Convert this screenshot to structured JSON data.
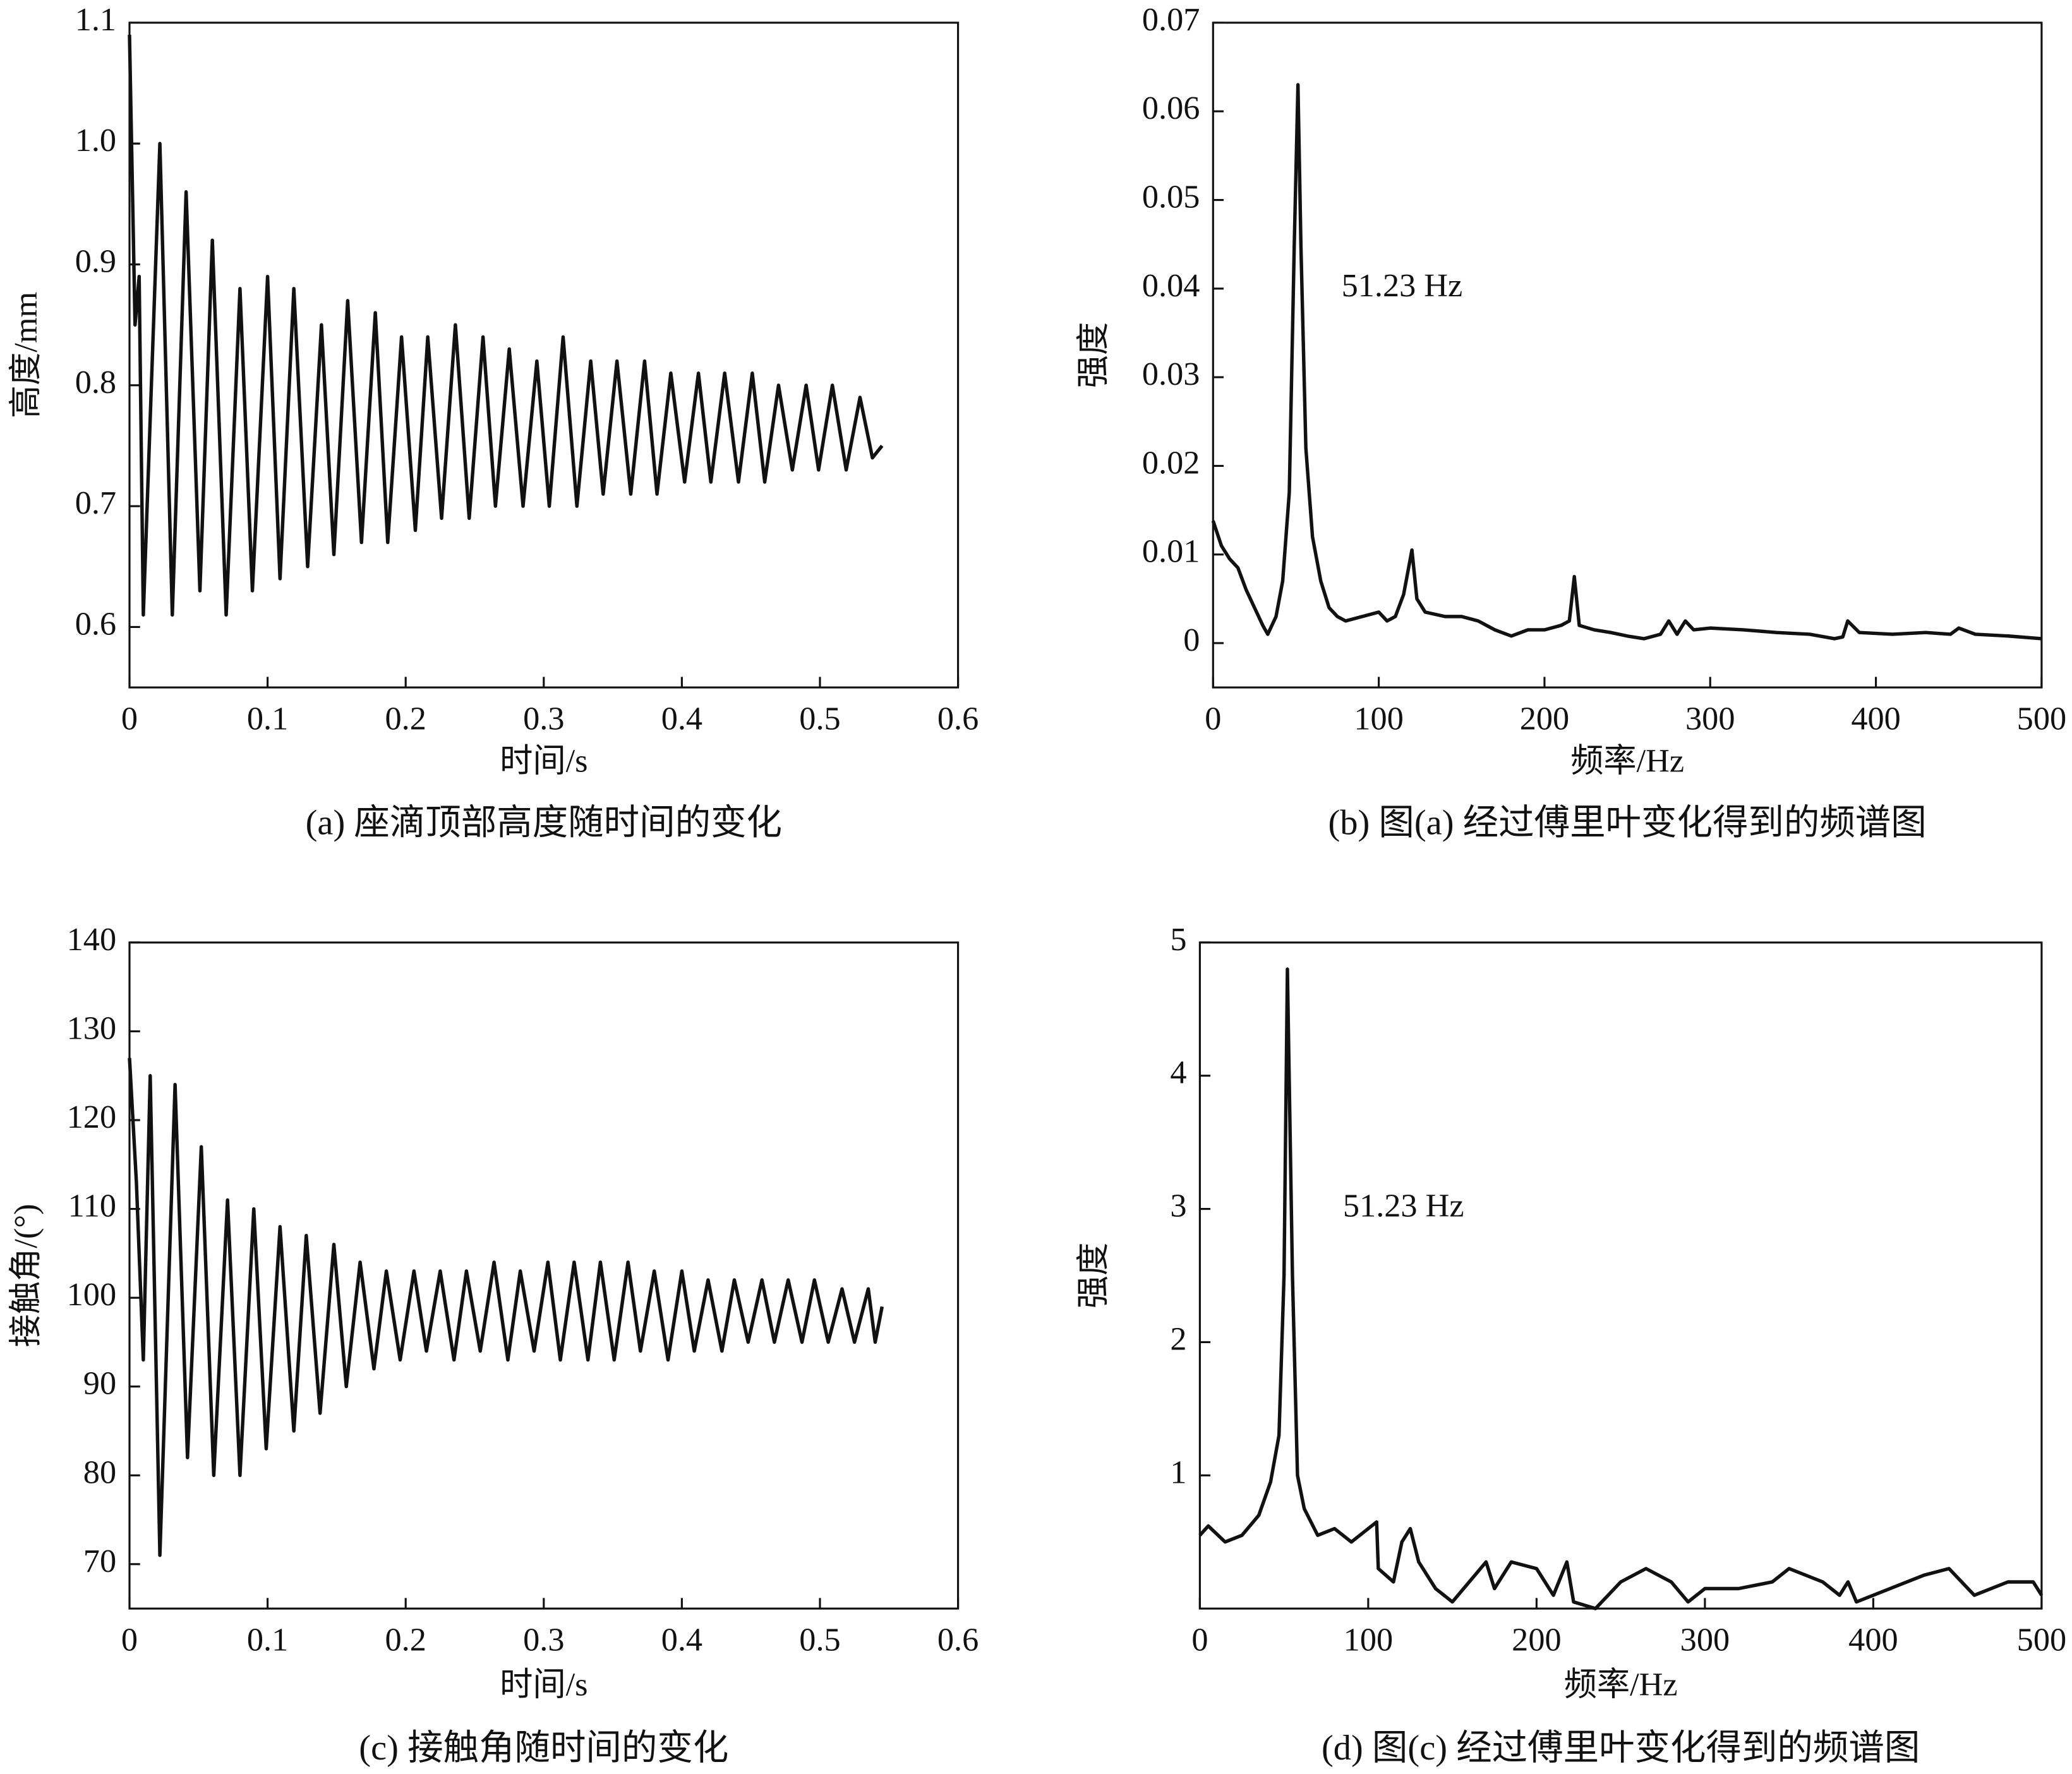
{
  "chart_data": [
    {
      "type": "line",
      "title": "(a) 座滴顶部高度随时间的变化",
      "x_label": "时间/s",
      "y_label": "高度/mm",
      "color": "#111111",
      "xlim": [
        0,
        0.6
      ],
      "xticks": [
        0,
        0.1,
        0.2,
        0.3,
        0.4,
        0.5,
        0.6
      ],
      "ylim": [
        0.55,
        1.1
      ],
      "yticks": [
        0.6,
        0.7,
        0.8,
        0.9,
        {
          "value": 1,
          "label": "1.0"
        },
        1.1
      ],
      "x": [
        0,
        0.004,
        0.007,
        0.01,
        0.022,
        0.031,
        0.041,
        0.051,
        0.06,
        0.07,
        0.08,
        0.089,
        0.1,
        0.109,
        0.119,
        0.129,
        0.139,
        0.148,
        0.158,
        0.168,
        0.178,
        0.187,
        0.197,
        0.207,
        0.216,
        0.226,
        0.236,
        0.246,
        0.256,
        0.265,
        0.275,
        0.285,
        0.295,
        0.304,
        0.314,
        0.324,
        0.334,
        0.343,
        0.353,
        0.363,
        0.373,
        0.382,
        0.392,
        0.402,
        0.412,
        0.421,
        0.431,
        0.441,
        0.451,
        0.46,
        0.47,
        0.48,
        0.49,
        0.499,
        0.509,
        0.519,
        0.529,
        0.538,
        0.545
      ],
      "values": [
        1.09,
        0.85,
        0.89,
        0.61,
        1.0,
        0.61,
        0.96,
        0.63,
        0.92,
        0.61,
        0.88,
        0.63,
        0.89,
        0.64,
        0.88,
        0.65,
        0.85,
        0.66,
        0.87,
        0.67,
        0.86,
        0.67,
        0.84,
        0.68,
        0.84,
        0.69,
        0.85,
        0.69,
        0.84,
        0.7,
        0.83,
        0.7,
        0.82,
        0.7,
        0.84,
        0.7,
        0.82,
        0.71,
        0.82,
        0.71,
        0.82,
        0.71,
        0.81,
        0.72,
        0.81,
        0.72,
        0.81,
        0.72,
        0.81,
        0.72,
        0.8,
        0.73,
        0.8,
        0.73,
        0.8,
        0.73,
        0.79,
        0.74,
        0.75
      ]
    },
    {
      "type": "line",
      "title": "(b) 图(a) 经过傅里叶变化得到的频谱图",
      "x_label": "频率/Hz",
      "y_label": "强度",
      "annotation": "51.23 Hz",
      "color": "#111111",
      "xlim": [
        0,
        500
      ],
      "xticks": [
        0,
        100,
        200,
        300,
        400,
        500
      ],
      "ylim": [
        -0.005,
        0.07
      ],
      "yticks": [
        0,
        0.01,
        0.02,
        0.03,
        0.04,
        0.05,
        0.06,
        0.07
      ],
      "x": [
        0,
        5,
        10,
        15,
        20,
        25,
        30,
        33,
        38,
        42,
        46,
        49,
        51.23,
        53,
        56,
        60,
        65,
        70,
        75,
        80,
        90,
        100,
        105,
        110,
        115,
        120,
        123,
        128,
        140,
        150,
        160,
        170,
        180,
        190,
        200,
        210,
        215,
        218,
        221,
        230,
        240,
        250,
        260,
        270,
        275,
        280,
        285,
        290,
        300,
        320,
        340,
        360,
        375,
        380,
        383,
        390,
        410,
        430,
        445,
        450,
        460,
        480,
        500
      ],
      "values": [
        0.0138,
        0.011,
        0.0095,
        0.0085,
        0.006,
        0.004,
        0.002,
        0.001,
        0.003,
        0.007,
        0.017,
        0.045,
        0.063,
        0.045,
        0.022,
        0.012,
        0.007,
        0.004,
        0.003,
        0.0025,
        0.003,
        0.0035,
        0.0025,
        0.003,
        0.0055,
        0.0105,
        0.005,
        0.0035,
        0.003,
        0.003,
        0.0025,
        0.0015,
        0.0008,
        0.0015,
        0.0015,
        0.002,
        0.0025,
        0.0075,
        0.002,
        0.0015,
        0.0012,
        0.0008,
        0.0005,
        0.001,
        0.0025,
        0.001,
        0.0025,
        0.0015,
        0.0017,
        0.0015,
        0.0012,
        0.001,
        0.0005,
        0.0007,
        0.0025,
        0.0012,
        0.001,
        0.0012,
        0.001,
        0.0017,
        0.001,
        0.0008,
        0.0005
      ]
    },
    {
      "type": "line",
      "title": "(c) 接触角随时间的变化",
      "x_label": "时间/s",
      "y_label": "接触角/(°)",
      "color": "#111111",
      "xlim": [
        0,
        0.6
      ],
      "xticks": [
        0,
        0.1,
        0.2,
        0.3,
        0.4,
        0.5,
        0.6
      ],
      "ylim": [
        65,
        140
      ],
      "yticks": [
        70,
        80,
        90,
        100,
        110,
        120,
        130,
        140
      ],
      "x": [
        0,
        0.005,
        0.01,
        0.015,
        0.022,
        0.033,
        0.042,
        0.052,
        0.061,
        0.071,
        0.08,
        0.09,
        0.099,
        0.109,
        0.119,
        0.128,
        0.138,
        0.148,
        0.157,
        0.167,
        0.177,
        0.186,
        0.196,
        0.206,
        0.215,
        0.225,
        0.235,
        0.244,
        0.254,
        0.264,
        0.274,
        0.283,
        0.293,
        0.303,
        0.312,
        0.322,
        0.332,
        0.341,
        0.351,
        0.361,
        0.37,
        0.38,
        0.39,
        0.4,
        0.409,
        0.419,
        0.429,
        0.438,
        0.448,
        0.458,
        0.467,
        0.477,
        0.487,
        0.496,
        0.506,
        0.516,
        0.525,
        0.535,
        0.54,
        0.545
      ],
      "values": [
        127,
        113,
        93,
        125,
        71,
        124,
        82,
        117,
        80,
        111,
        80,
        110,
        83,
        108,
        85,
        107,
        87,
        106,
        90,
        104,
        92,
        103,
        93,
        103,
        94,
        103,
        93,
        103,
        94,
        104,
        93,
        103,
        94,
        104,
        93,
        104,
        93,
        104,
        93,
        104,
        94,
        103,
        93,
        103,
        94,
        102,
        94,
        102,
        95,
        102,
        95,
        102,
        95,
        102,
        95,
        101,
        95,
        101,
        95,
        99
      ]
    },
    {
      "type": "line",
      "title": "(d) 图(c) 经过傅里叶变化得到的频谱图",
      "x_label": "频率/Hz",
      "y_label": "强度",
      "annotation": "51.23 Hz",
      "color": "#111111",
      "xlim": [
        0,
        500
      ],
      "xticks": [
        0,
        100,
        200,
        300,
        400,
        500
      ],
      "ylim": [
        0,
        5
      ],
      "yticks": [
        1,
        2,
        3,
        4,
        5
      ],
      "x": [
        0,
        5,
        15,
        25,
        35,
        42,
        47,
        50,
        52,
        55,
        58,
        62,
        70,
        80,
        90,
        100,
        105,
        106,
        115,
        120,
        125,
        130,
        140,
        150,
        160,
        170,
        175,
        185,
        200,
        210,
        218,
        222,
        235,
        250,
        265,
        280,
        290,
        300,
        320,
        340,
        350,
        370,
        380,
        385,
        390,
        410,
        430,
        445,
        460,
        480,
        495,
        500
      ],
      "values": [
        0.55,
        0.62,
        0.5,
        0.55,
        0.7,
        0.95,
        1.3,
        2.5,
        4.8,
        2.5,
        1.0,
        0.75,
        0.55,
        0.6,
        0.5,
        0.6,
        0.65,
        0.3,
        0.2,
        0.5,
        0.6,
        0.35,
        0.15,
        0.05,
        0.2,
        0.35,
        0.15,
        0.35,
        0.3,
        0.1,
        0.35,
        0.05,
        0.0,
        0.2,
        0.3,
        0.2,
        0.05,
        0.15,
        0.15,
        0.2,
        0.3,
        0.2,
        0.1,
        0.2,
        0.05,
        0.15,
        0.25,
        0.3,
        0.1,
        0.2,
        0.2,
        0.1
      ]
    }
  ]
}
